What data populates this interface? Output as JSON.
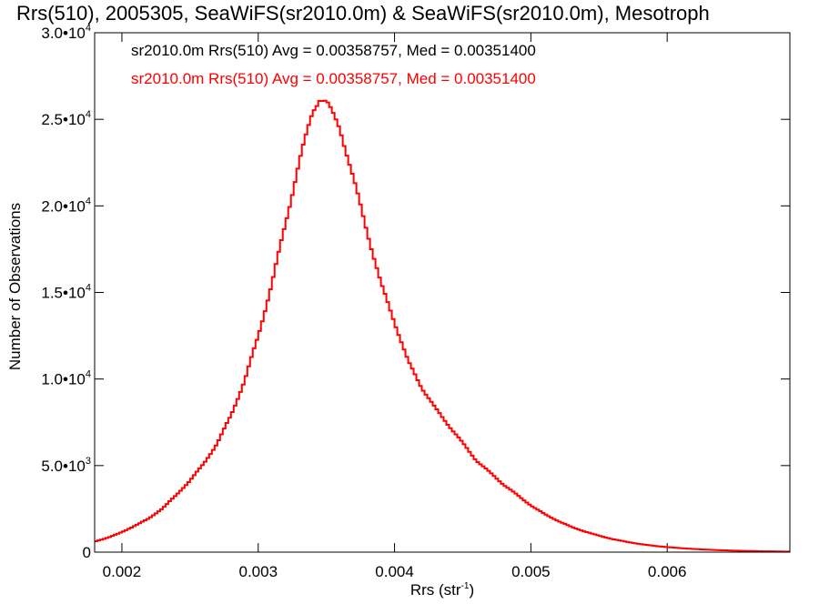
{
  "chart_data": {
    "type": "line",
    "title": "Rrs(510), 2005305, SeaWiFS(sr2010.0m) & SeaWiFS(sr2010.0m), Mesotroph",
    "xlabel_main": "Rrs (str",
    "xlabel_sup": "-1",
    "xlabel_end": ")",
    "ylabel": "Number of Observations",
    "xlim": [
      0.0018,
      0.0069
    ],
    "ylim": [
      0,
      30000
    ],
    "x_ticks": [
      {
        "value": 0.002,
        "label": "0.002"
      },
      {
        "value": 0.003,
        "label": "0.003"
      },
      {
        "value": 0.004,
        "label": "0.004"
      },
      {
        "value": 0.005,
        "label": "0.005"
      },
      {
        "value": 0.006,
        "label": "0.006"
      }
    ],
    "y_ticks": [
      {
        "value": 0,
        "mant": "0",
        "exp": ""
      },
      {
        "value": 5000,
        "mant": "5.0•10",
        "exp": "3"
      },
      {
        "value": 10000,
        "mant": "1.0•10",
        "exp": "4"
      },
      {
        "value": 15000,
        "mant": "1.5•10",
        "exp": "4"
      },
      {
        "value": 20000,
        "mant": "2.0•10",
        "exp": "4"
      },
      {
        "value": 25000,
        "mant": "2.5•10",
        "exp": "4"
      },
      {
        "value": 30000,
        "mant": "3.0•10",
        "exp": "4"
      }
    ],
    "legend": [
      {
        "text": "sr2010.0m Rrs(510) Avg = 0.00358757, Med = 0.00351400",
        "color": "#000000"
      },
      {
        "text": "sr2010.0m Rrs(510) Avg = 0.00358757, Med = 0.00351400",
        "color": "#ff0000"
      }
    ],
    "series": [
      {
        "color": "#ff0000",
        "x": [
          0.0018,
          0.0019,
          0.002,
          0.0021,
          0.0022,
          0.0023,
          0.0024,
          0.0025,
          0.0026,
          0.0027,
          0.0028,
          0.0029,
          0.003,
          0.0031,
          0.0032,
          0.0033,
          0.0034,
          0.00345,
          0.0035,
          0.0036,
          0.0037,
          0.0038,
          0.0039,
          0.004,
          0.0041,
          0.0042,
          0.0043,
          0.0044,
          0.0045,
          0.0046,
          0.0047,
          0.0048,
          0.0049,
          0.005,
          0.0051,
          0.0052,
          0.0053,
          0.0054,
          0.0055,
          0.0056,
          0.0057,
          0.0058,
          0.0059,
          0.006,
          0.0061,
          0.0062,
          0.0063,
          0.0064,
          0.0065,
          0.0066,
          0.0067,
          0.0068,
          0.0069
        ],
        "y": [
          600,
          850,
          1150,
          1550,
          1950,
          2550,
          3300,
          4150,
          5100,
          6300,
          7900,
          9900,
          12500,
          15500,
          19000,
          22500,
          25500,
          26200,
          26000,
          24500,
          21500,
          18500,
          15500,
          13300,
          11000,
          9500,
          8300,
          7300,
          6300,
          5300,
          4600,
          3900,
          3300,
          2700,
          2200,
          1800,
          1450,
          1180,
          950,
          750,
          600,
          470,
          370,
          290,
          230,
          180,
          140,
          110,
          85,
          65,
          50,
          40,
          30
        ]
      }
    ]
  }
}
